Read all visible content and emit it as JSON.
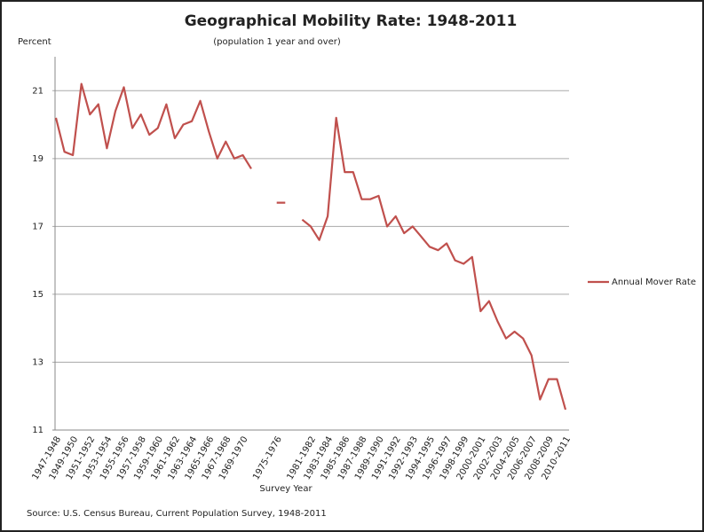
{
  "chart_data": {
    "type": "line",
    "title": "Geographical Mobility Rate: 1948-2011",
    "subtitle": "(population 1 year and over)",
    "y_label": "Percent",
    "x_label": "Survey Year",
    "source": "Source: U.S. Census Bureau, Current Population Survey, 1948-2011",
    "categories": [
      "1947-1948",
      null,
      "1949-1950",
      null,
      "1951-1952",
      null,
      "1953-1954",
      null,
      "1955-1956",
      null,
      "1957-1958",
      null,
      "1959-1960",
      null,
      "1961-1962",
      null,
      "1963-1964",
      null,
      "1965-1966",
      null,
      "1967-1968",
      null,
      "1969-1970",
      null,
      null,
      null,
      "1975-1976",
      null,
      null,
      null,
      "1981-1982",
      null,
      "1983-1984",
      null,
      "1985-1986",
      null,
      "1987-1988",
      null,
      "1989-1990",
      null,
      "1991-1992",
      null,
      "1992-1993",
      null,
      "1994-1995",
      null,
      "1996-1997",
      null,
      "1998-1999",
      null,
      "2000-2001",
      null,
      "2002-2003",
      null,
      "2004-2005",
      null,
      "2006-2007",
      null,
      "2008-2009",
      null,
      "2010-2011"
    ],
    "series": [
      {
        "name": "Annual Mover Rate",
        "color": "#c0504d",
        "values": [
          20.2,
          19.2,
          19.1,
          21.2,
          20.3,
          20.6,
          19.3,
          20.4,
          21.1,
          19.9,
          20.3,
          19.7,
          19.9,
          20.6,
          19.6,
          20.0,
          20.1,
          20.7,
          19.8,
          19.0,
          19.5,
          19.0,
          19.1,
          18.7,
          null,
          null,
          17.7,
          17.7,
          null,
          17.2,
          17.0,
          16.6,
          17.3,
          20.2,
          18.6,
          18.6,
          17.8,
          17.8,
          17.9,
          17.0,
          17.3,
          16.8,
          17.0,
          16.7,
          16.4,
          16.3,
          16.5,
          16.0,
          15.9,
          16.1,
          14.5,
          14.8,
          14.2,
          13.7,
          13.9,
          13.7,
          13.2,
          11.9,
          12.5,
          12.5,
          11.6
        ]
      }
    ],
    "ylim": [
      11,
      22
    ],
    "yticks": [
      11,
      13,
      15,
      17,
      19,
      21
    ],
    "grid": true,
    "legend": "right"
  }
}
